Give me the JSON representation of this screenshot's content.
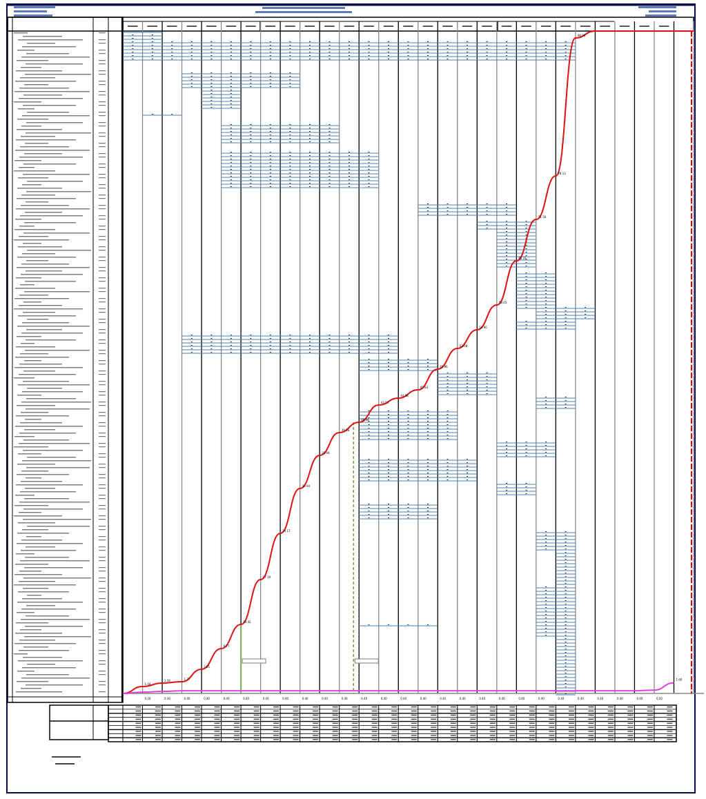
{
  "chart_data": {
    "type": "line",
    "title": "",
    "xlabel": "",
    "ylabel": "",
    "periods": 29,
    "ylim": [
      0,
      100
    ],
    "grid": true,
    "series": [
      {
        "name": "planned",
        "color": "#e01010",
        "values": [
          0,
          1.04,
          1.56,
          1.77,
          3.65,
          6.77,
          10.42,
          17.19,
          24.17,
          30.94,
          35.94,
          39.38,
          40.94,
          43.54,
          44.58,
          45.83,
          48.96,
          52.08,
          54.9,
          58.65,
          65.31,
          71.56,
          78.13,
          98.96,
          100,
          100,
          100,
          100,
          100,
          100
        ]
      },
      {
        "name": "actual",
        "color": "#e040e0",
        "values": [
          0,
          0.2,
          0.3,
          0.4,
          0.4,
          0.4,
          0.4,
          0.4,
          0.4,
          0.4,
          0.4,
          0.4,
          0.4,
          0.4,
          0.4,
          0.4,
          0.4,
          0.4,
          0.4,
          0.4,
          0.4,
          0.4,
          0.4,
          0.4,
          0.4,
          0.4,
          0.4,
          0.5,
          1.6
        ]
      }
    ],
    "task_bars": [
      {
        "rows": [
          0,
          2
        ],
        "start": 0,
        "end": 2
      },
      {
        "rows": [
          3,
          8
        ],
        "start": 0,
        "end": 23
      },
      {
        "rows": [
          12,
          16
        ],
        "start": 3,
        "end": 9
      },
      {
        "rows": [
          17,
          22
        ],
        "start": 4,
        "end": 6
      },
      {
        "rows": [
          24,
          24
        ],
        "start": 1,
        "end": 3
      },
      {
        "rows": [
          27,
          32
        ],
        "start": 5,
        "end": 11
      },
      {
        "rows": [
          35,
          45
        ],
        "start": 5,
        "end": 13
      },
      {
        "rows": [
          50,
          53
        ],
        "start": 15,
        "end": 20
      },
      {
        "rows": [
          55,
          57
        ],
        "start": 18,
        "end": 21
      },
      {
        "rows": [
          58,
          68
        ],
        "start": 19,
        "end": 21
      },
      {
        "rows": [
          70,
          80
        ],
        "start": 20,
        "end": 22
      },
      {
        "rows": [
          80,
          83
        ],
        "start": 21,
        "end": 24
      },
      {
        "rows": [
          84,
          86
        ],
        "start": 20,
        "end": 23
      },
      {
        "rows": [
          88,
          93
        ],
        "start": 3,
        "end": 14
      },
      {
        "rows": [
          95,
          98
        ],
        "start": 12,
        "end": 16
      },
      {
        "rows": [
          99,
          105
        ],
        "start": 16,
        "end": 19
      },
      {
        "rows": [
          106,
          109
        ],
        "start": 21,
        "end": 23
      },
      {
        "rows": [
          110,
          118
        ],
        "start": 12,
        "end": 17
      },
      {
        "rows": [
          119,
          123
        ],
        "start": 19,
        "end": 22
      },
      {
        "rows": [
          124,
          130
        ],
        "start": 12,
        "end": 18
      },
      {
        "rows": [
          131,
          134
        ],
        "start": 19,
        "end": 21
      },
      {
        "rows": [
          137,
          141
        ],
        "start": 12,
        "end": 16
      },
      {
        "rows": [
          145,
          150
        ],
        "start": 21,
        "end": 23
      },
      {
        "rows": [
          151,
          160
        ],
        "start": 22,
        "end": 23
      },
      {
        "rows": [
          161,
          175
        ],
        "start": 21,
        "end": 23
      },
      {
        "rows": [
          172,
          172
        ],
        "start": 12,
        "end": 16
      },
      {
        "rows": [
          176,
          192
        ],
        "start": 22,
        "end": 23
      }
    ],
    "milestones": [
      6,
      12
    ]
  },
  "colors": {
    "frame": "#0a0a50",
    "bar": "#4a7fb0",
    "grid": "#000000"
  }
}
